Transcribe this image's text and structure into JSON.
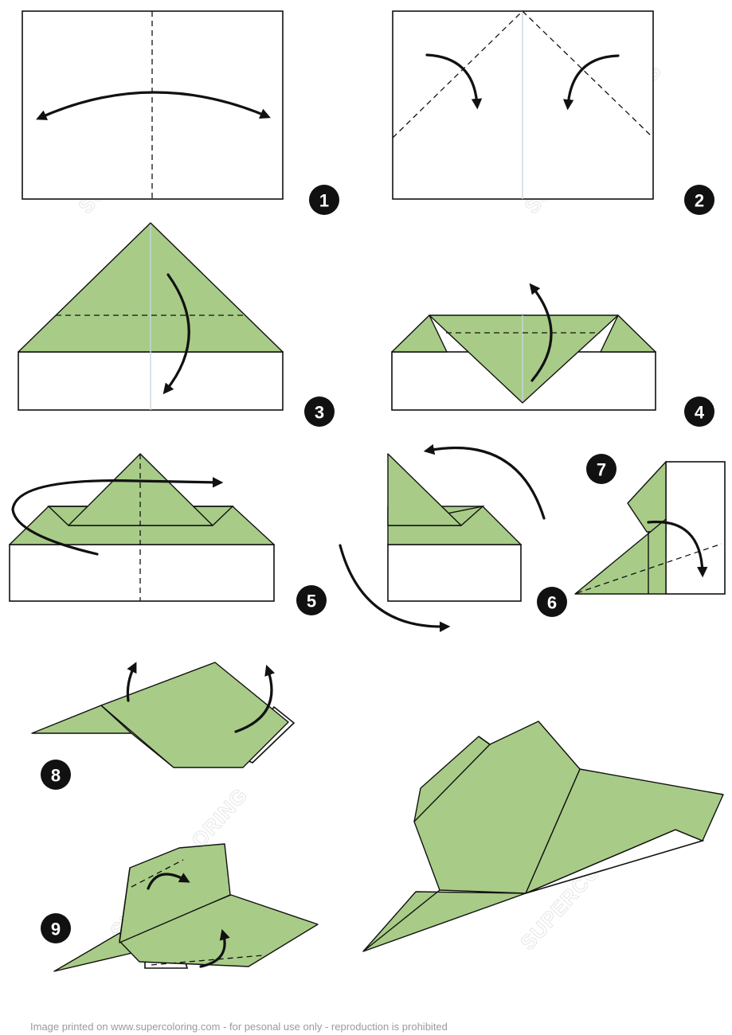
{
  "colors": {
    "paper_green": "#a8cc87",
    "outline": "#111111",
    "badge": "#111111",
    "footer_text": "#9a9a9a"
  },
  "steps": [
    {
      "number": "1"
    },
    {
      "number": "2"
    },
    {
      "number": "3"
    },
    {
      "number": "4"
    },
    {
      "number": "5"
    },
    {
      "number": "6"
    },
    {
      "number": "7"
    },
    {
      "number": "8"
    },
    {
      "number": "9"
    }
  ],
  "watermark": "SUPERCOLORING",
  "footer": "Image printed on www.supercoloring.com - for pesonal use only - reproduction is prohibited"
}
